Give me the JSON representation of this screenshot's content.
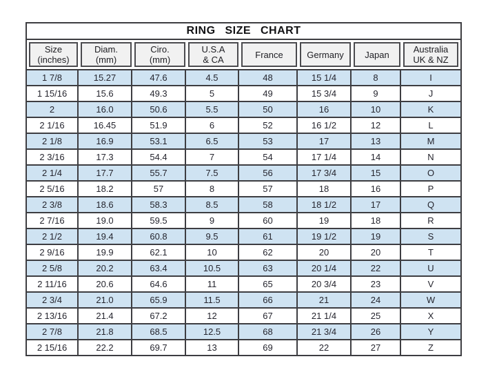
{
  "title": "RING  SIZE  CHART",
  "colors": {
    "stripe_blue": "#cfe3f2",
    "border_dark": "#3d3d41",
    "header_cell_bg": "#f1f1f1",
    "text": "#25252e"
  },
  "chart_data": {
    "type": "table",
    "title": "RING SIZE CHART",
    "columns": [
      {
        "label": "Size",
        "sublabel": "(inches)"
      },
      {
        "label": "Diam.",
        "sublabel": "(mm)"
      },
      {
        "label": "Ciro.",
        "sublabel": "(mm)"
      },
      {
        "label": "U.S.A",
        "sublabel": "& CA"
      },
      {
        "label": "France",
        "sublabel": ""
      },
      {
        "label": "Germany",
        "sublabel": ""
      },
      {
        "label": "Japan",
        "sublabel": ""
      },
      {
        "label": "Australia",
        "sublabel": "UK & NZ"
      }
    ],
    "rows": [
      [
        "1 7/8",
        "15.27",
        "47.6",
        "4.5",
        "48",
        "15 1/4",
        "8",
        "I"
      ],
      [
        "1 15/16",
        "15.6",
        "49.3",
        "5",
        "49",
        "15 3/4",
        "9",
        "J"
      ],
      [
        "2",
        "16.0",
        "50.6",
        "5.5",
        "50",
        "16",
        "10",
        "K"
      ],
      [
        "2 1/16",
        "16.45",
        "51.9",
        "6",
        "52",
        "16 1/2",
        "12",
        "L"
      ],
      [
        "2 1/8",
        "16.9",
        "53.1",
        "6.5",
        "53",
        "17",
        "13",
        "M"
      ],
      [
        "2 3/16",
        "17.3",
        "54.4",
        "7",
        "54",
        "17 1/4",
        "14",
        "N"
      ],
      [
        "2 1/4",
        "17.7",
        "55.7",
        "7.5",
        "56",
        "17 3/4",
        "15",
        "O"
      ],
      [
        "2 5/16",
        "18.2",
        "57",
        "8",
        "57",
        "18",
        "16",
        "P"
      ],
      [
        "2 3/8",
        "18.6",
        "58.3",
        "8.5",
        "58",
        "18 1/2",
        "17",
        "Q"
      ],
      [
        "2 7/16",
        "19.0",
        "59.5",
        "9",
        "60",
        "19",
        "18",
        "R"
      ],
      [
        "2 1/2",
        "19.4",
        "60.8",
        "9.5",
        "61",
        "19 1/2",
        "19",
        "S"
      ],
      [
        "2 9/16",
        "19.9",
        "62.1",
        "10",
        "62",
        "20",
        "20",
        "T"
      ],
      [
        "2 5/8",
        "20.2",
        "63.4",
        "10.5",
        "63",
        "20 1/4",
        "22",
        "U"
      ],
      [
        "2 11/16",
        "20.6",
        "64.6",
        "11",
        "65",
        "20 3/4",
        "23",
        "V"
      ],
      [
        "2 3/4",
        "21.0",
        "65.9",
        "11.5",
        "66",
        "21",
        "24",
        "W"
      ],
      [
        "2 13/16",
        "21.4",
        "67.2",
        "12",
        "67",
        "21 1/4",
        "25",
        "X"
      ],
      [
        "2 7/8",
        "21.8",
        "68.5",
        "12.5",
        "68",
        "21 3/4",
        "26",
        "Y"
      ],
      [
        "2 15/16",
        "22.2",
        "69.7",
        "13",
        "69",
        "22",
        "27",
        "Z"
      ]
    ],
    "stripe_pattern": "odd rows (1st, 3rd, ...) have light blue background",
    "grid": true,
    "legend": "none"
  }
}
